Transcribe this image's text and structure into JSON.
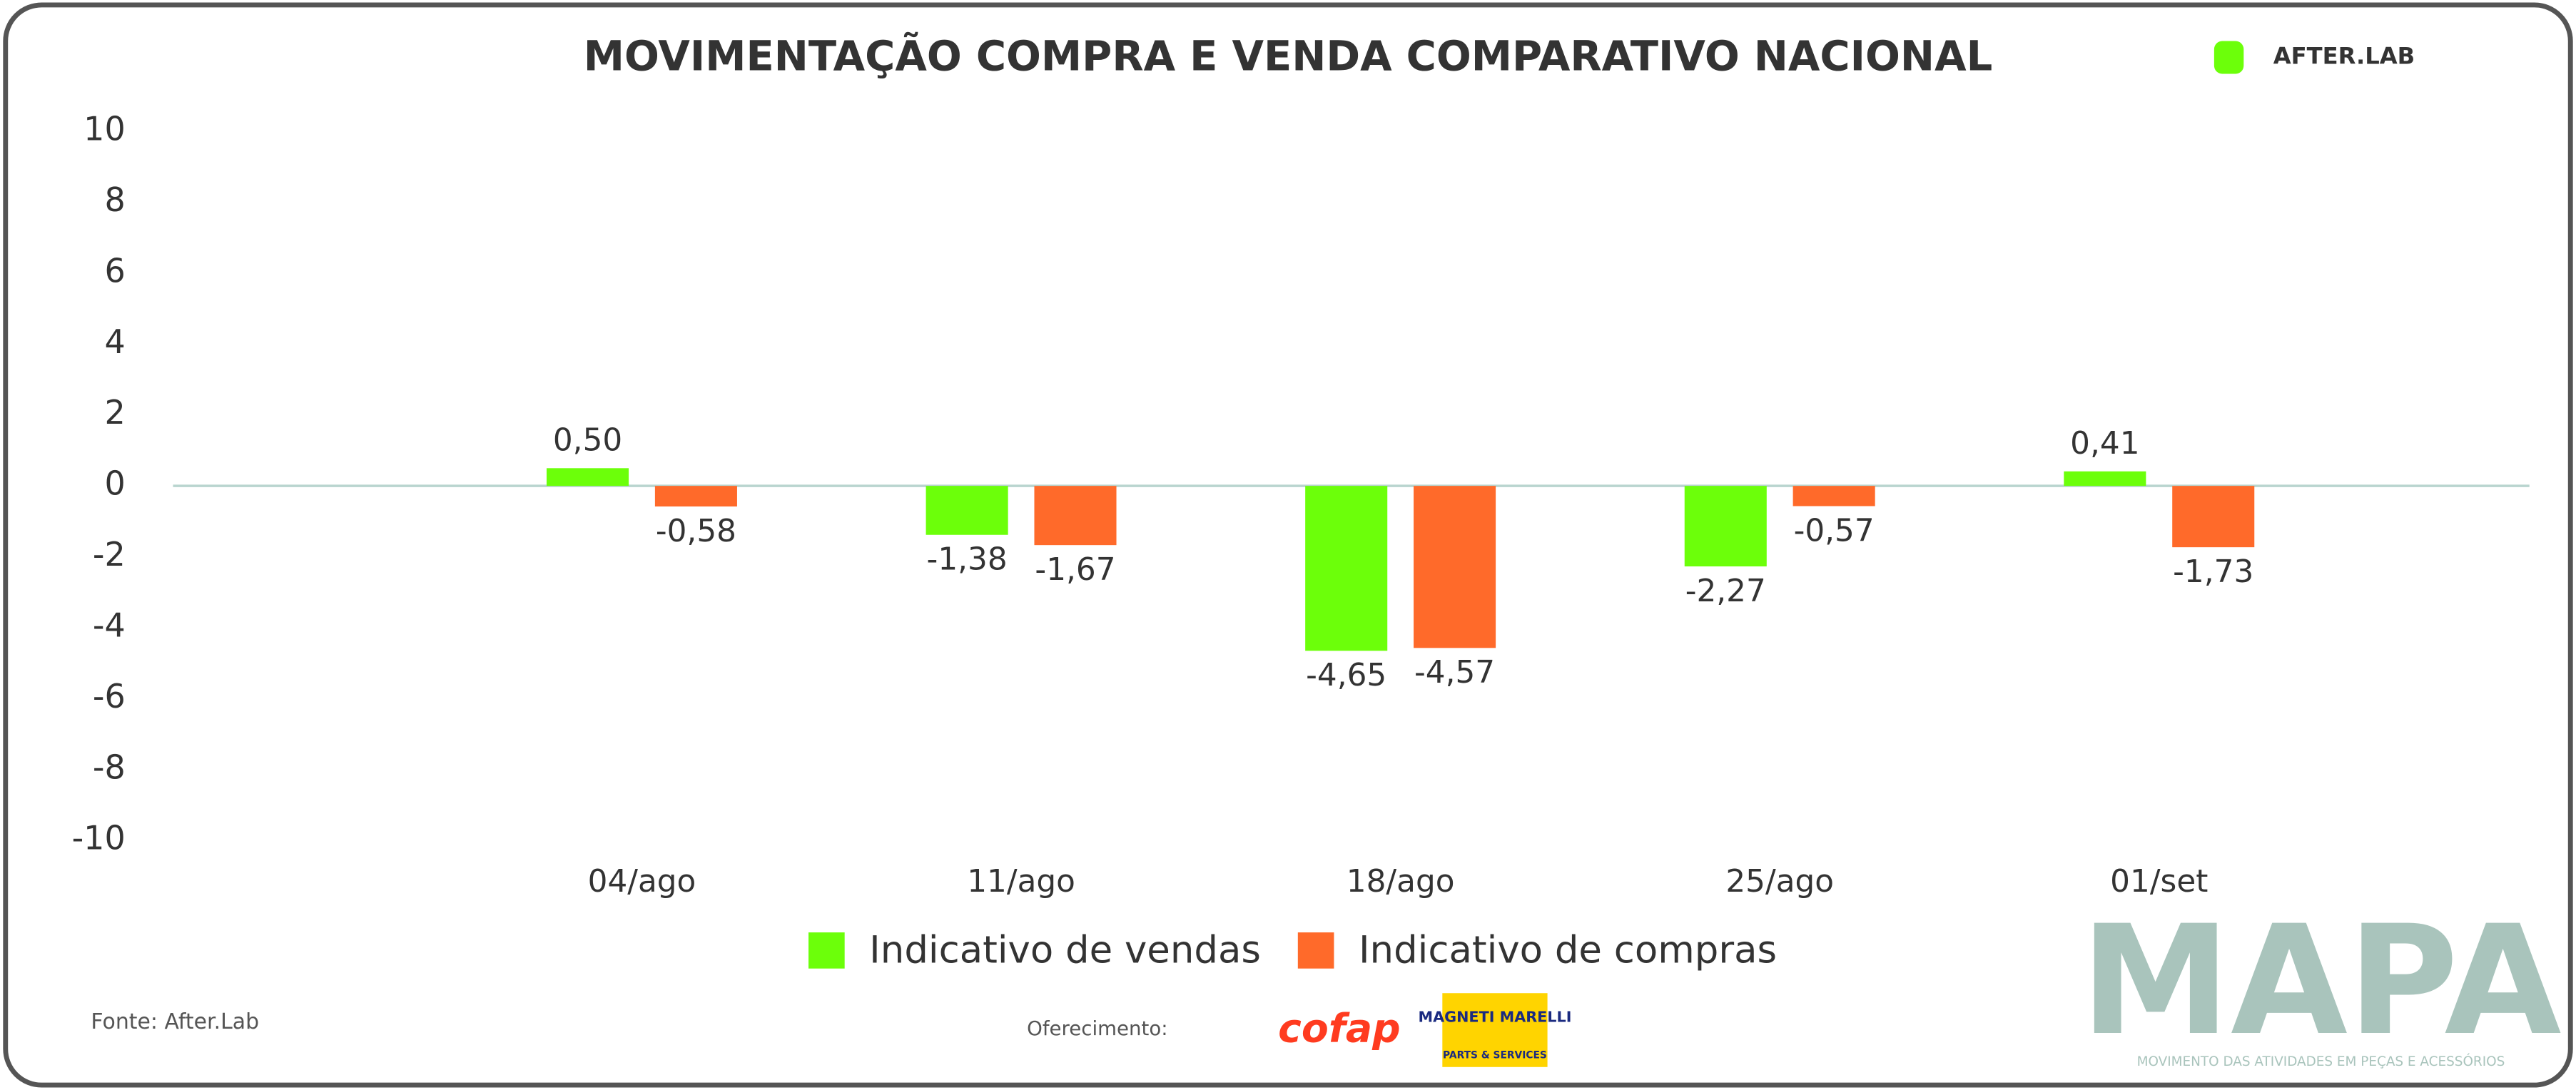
{
  "chart_data": {
    "type": "bar",
    "title": "MOVIMENTAÇÃO COMPRA E VENDA COMPARATIVO NACIONAL",
    "categories": [
      "04/ago",
      "11/ago",
      "18/ago",
      "25/ago",
      "01/set"
    ],
    "series": [
      {
        "name": "Indicativo de vendas",
        "color": "#6cff0a",
        "values": [
          0.5,
          -1.38,
          -4.65,
          -2.27,
          0.41
        ],
        "value_labels": [
          "0,50",
          "-1,38",
          "-4,65",
          "-2,27",
          "0,41"
        ]
      },
      {
        "name": "Indicativo de compras",
        "color": "#ff6a2a",
        "values": [
          -0.58,
          -1.67,
          -4.57,
          -0.57,
          -1.73
        ],
        "value_labels": [
          "-0,58",
          "-1,67",
          "-4,57",
          "-0,57",
          "-1,73"
        ]
      }
    ],
    "ylim": [
      -10,
      10
    ],
    "yticks": [
      -10,
      -8,
      -6,
      -4,
      -2,
      0,
      2,
      4,
      6,
      8,
      10
    ],
    "grid": false,
    "legend": "bottom"
  },
  "source": "Fonte: After.Lab",
  "sponsor_label": "Oferecimento:",
  "logos": {
    "afterlab": "AFTER.LAB",
    "cofap": "cofap",
    "magneti": "MAGNETI MARELLI",
    "magneti_sub": "PARTS & SERVICES",
    "mapa": "MAPA",
    "mapa_sub": "MOVIMENTO DAS ATIVIDADES EM PEÇAS E ACESSÓRIOS"
  }
}
